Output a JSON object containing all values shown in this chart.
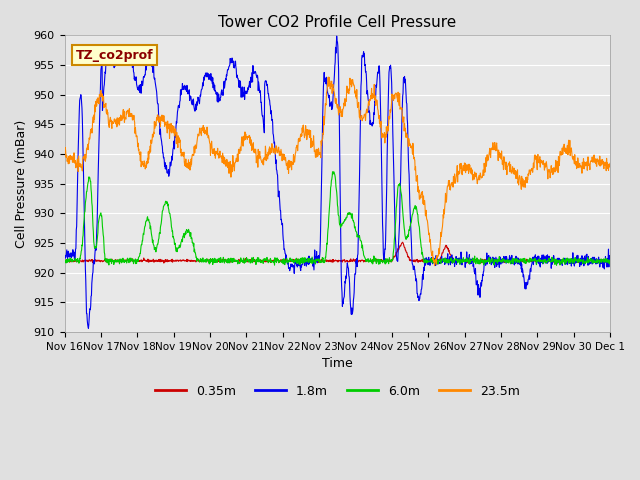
{
  "title": "Tower CO2 Profile Cell Pressure",
  "xlabel": "Time",
  "ylabel": "Cell Pressure (mBar)",
  "ylim": [
    910,
    960
  ],
  "yticks": [
    910,
    915,
    920,
    925,
    930,
    935,
    940,
    945,
    950,
    955,
    960
  ],
  "legend_label": "TZ_co2prof",
  "series_labels": [
    "0.35m",
    "1.8m",
    "6.0m",
    "23.5m"
  ],
  "series_colors": [
    "#cc0000",
    "#0000ee",
    "#00cc00",
    "#ff8800"
  ],
  "xtick_labels": [
    "Nov 16",
    "Nov 17",
    "Nov 18",
    "Nov 19",
    "Nov 20",
    "Nov 21",
    "Nov 22",
    "Nov 23",
    "Nov 24",
    "Nov 25",
    "Nov 26",
    "Nov 27",
    "Nov 28",
    "Nov 29",
    "Nov 30",
    "Dec 1"
  ],
  "background_color": "#e0e0e0",
  "plot_background": "#e8e8e8",
  "grid_color": "#ffffff",
  "title_fontsize": 11,
  "axis_label_fontsize": 9,
  "tick_fontsize": 8,
  "legend_fontsize": 9
}
